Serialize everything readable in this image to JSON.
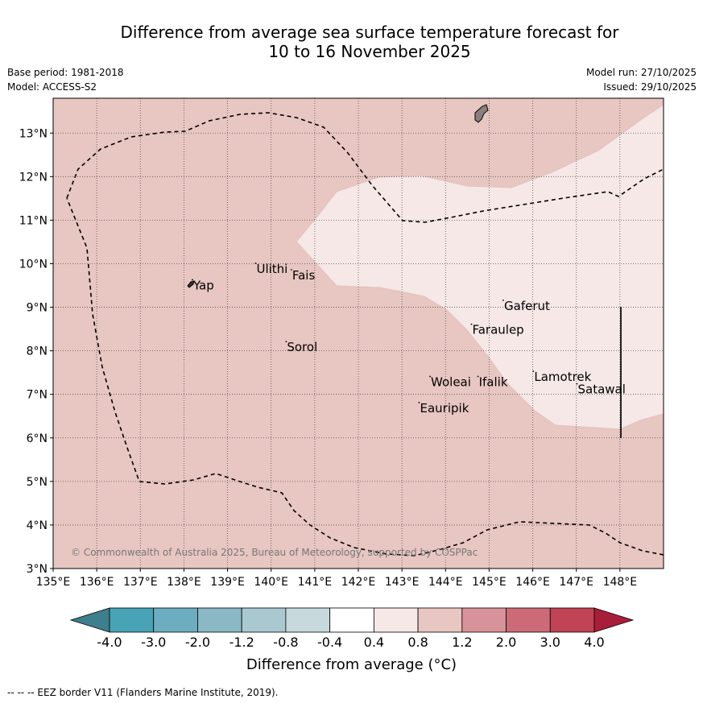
{
  "title_line1": "Difference from average sea surface temperature forecast for",
  "title_line2": "10 to 16 November 2025",
  "base_period": "Base period: 1981-2018",
  "model": "Model: ACCESS-S2",
  "model_run": "Model run: 27/10/2025",
  "issued": "Issued: 29/10/2025",
  "copyright": "© Commonwealth of Australia 2025, Bureau of Meteorology, supported by COSPPac",
  "lat_labels": [
    "3°N",
    "4°N",
    "5°N",
    "6°N",
    "7°N",
    "8°N",
    "9°N",
    "10°N",
    "11°N",
    "12°N",
    "13°N"
  ],
  "lon_labels": [
    "135°E",
    "136°E",
    "137°E",
    "138°E",
    "139°E",
    "140°E",
    "141°E",
    "142°E",
    "143°E",
    "144°E",
    "145°E",
    "146°E",
    "147°E",
    "148°E"
  ],
  "places": [
    {
      "name": "Yap",
      "lon": 138.25,
      "lat": 9.52
    },
    {
      "name": "Ulithi",
      "lon": 139.7,
      "lat": 9.9
    },
    {
      "name": "Fais",
      "lon": 140.52,
      "lat": 9.75
    },
    {
      "name": "Sorol",
      "lon": 140.4,
      "lat": 8.1
    },
    {
      "name": "Gaferut",
      "lon": 145.38,
      "lat": 9.05
    },
    {
      "name": "Faraulep",
      "lon": 144.65,
      "lat": 8.5
    },
    {
      "name": "Lamotrek",
      "lon": 146.07,
      "lat": 7.42
    },
    {
      "name": "Woleai",
      "lon": 143.7,
      "lat": 7.3
    },
    {
      "name": "Ifalik",
      "lon": 144.8,
      "lat": 7.3
    },
    {
      "name": "Satawal",
      "lon": 147.07,
      "lat": 7.13
    },
    {
      "name": "Eauripik",
      "lon": 143.45,
      "lat": 6.7
    }
  ],
  "colorbar": {
    "labels": [
      "-4.0",
      "-3.0",
      "-2.0",
      "-1.2",
      "-0.8",
      "-0.4",
      "0.4",
      "0.8",
      "1.2",
      "2.0",
      "3.0",
      "4.0"
    ],
    "colors": [
      "#3d7f8c",
      "#47a3b5",
      "#6caebf",
      "#8ab8c4",
      "#aac8cf",
      "#c8d9dd",
      "#ffffff",
      "#f5e8e6",
      "#e8c6c1",
      "#d8929a",
      "#cc6b77",
      "#c04455",
      "#a81e3a"
    ],
    "title": "Difference from average (°C)"
  },
  "legend": "--  --  -- EEZ border V11 (Flanders Marine Institute, 2019)."
}
